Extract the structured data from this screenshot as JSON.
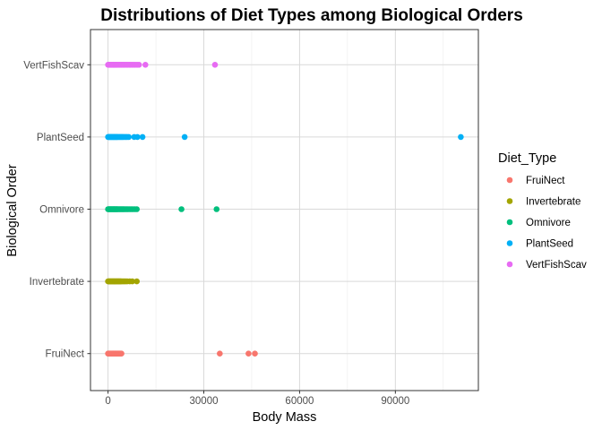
{
  "chart_data": {
    "type": "scatter",
    "title": "Distributions of Diet Types among Biological Orders",
    "xlabel": "Body Mass",
    "ylabel": "Biological Order",
    "xlim": [
      -5500,
      116000
    ],
    "x_ticks": [
      0,
      30000,
      60000,
      90000
    ],
    "x_tick_labels": [
      "0",
      "30000",
      "60000",
      "90000"
    ],
    "x_minor_ticks": [
      15000,
      45000,
      75000,
      105000
    ],
    "categories": [
      "FruiNect",
      "Invertebrate",
      "Omnivore",
      "PlantSeed",
      "VertFishScav"
    ],
    "grid": true,
    "legend": {
      "title": "Diet_Type",
      "position": "right"
    },
    "series": [
      {
        "name": "FruiNect",
        "color": "#F8766D",
        "category": "FruiNect",
        "x": [
          0,
          150,
          300,
          500,
          700,
          900,
          1100,
          1300,
          1500,
          1700,
          1900,
          2100,
          2300,
          2500,
          2700,
          2900,
          3100,
          3300,
          3500,
          3700,
          3900,
          4200,
          35000,
          44000,
          46000
        ]
      },
      {
        "name": "Invertebrate",
        "color": "#A3A500",
        "category": "Invertebrate",
        "x": [
          0,
          200,
          400,
          600,
          800,
          1000,
          1200,
          1400,
          1600,
          1800,
          2000,
          2200,
          2400,
          2600,
          2800,
          3000,
          3200,
          3400,
          3600,
          3800,
          4000,
          4300,
          4700,
          5100,
          5500,
          6000,
          6800,
          7600,
          9000
        ]
      },
      {
        "name": "Omnivore",
        "color": "#00BF7D",
        "category": "Omnivore",
        "x": [
          0,
          200,
          400,
          600,
          800,
          1000,
          1200,
          1400,
          1600,
          1800,
          2000,
          2200,
          2400,
          2600,
          2800,
          3000,
          3300,
          3600,
          3900,
          4200,
          4500,
          4800,
          5100,
          5500,
          5900,
          6300,
          6800,
          7300,
          7800,
          8400,
          9000,
          23000,
          34000
        ]
      },
      {
        "name": "PlantSeed",
        "color": "#00B0F6",
        "category": "PlantSeed",
        "x": [
          0,
          200,
          400,
          600,
          800,
          1000,
          1200,
          1400,
          1600,
          1800,
          2000,
          2200,
          2400,
          2600,
          2800,
          3000,
          3300,
          3600,
          3900,
          4200,
          4500,
          4800,
          5200,
          5600,
          6000,
          6500,
          8200,
          9200,
          10800,
          24000,
          110500
        ]
      },
      {
        "name": "VertFishScav",
        "color": "#E76BF3",
        "category": "VertFishScav",
        "x": [
          0,
          200,
          400,
          600,
          800,
          1000,
          1200,
          1400,
          1600,
          1800,
          2000,
          2200,
          2400,
          2600,
          2800,
          3000,
          3300,
          3600,
          3900,
          4200,
          4500,
          4800,
          5100,
          5400,
          5800,
          6200,
          6600,
          7000,
          7500,
          8000,
          8500,
          9100,
          9700,
          11700,
          33500
        ]
      }
    ]
  }
}
